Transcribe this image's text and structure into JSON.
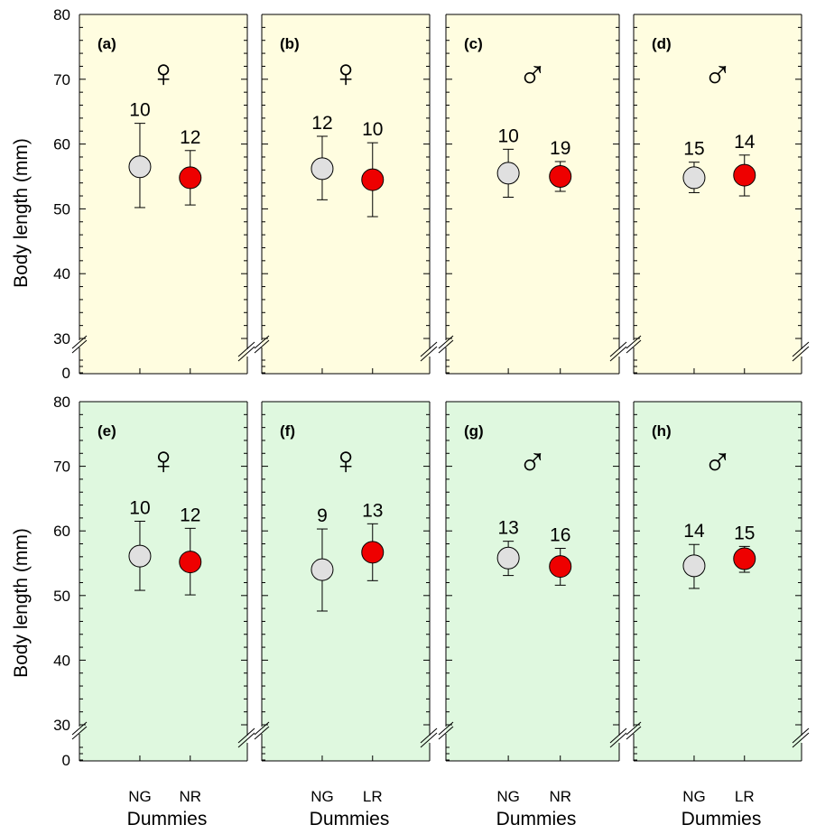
{
  "chart_data": {
    "type": "scatter",
    "ylabel": "Body length (mm)",
    "xlabel": "Dummies",
    "y_ticks": [
      "0",
      "30",
      "40",
      "50",
      "60",
      "70",
      "80"
    ],
    "ylim": [
      30,
      80
    ],
    "axis_break": "between 0 and 30",
    "grid": false,
    "marker_colors": {
      "NG": "#e0e0e0",
      "NR": "#ee0000",
      "LR": "#ee0000"
    },
    "row_backgrounds": [
      "#fffde0",
      "#dff8df"
    ],
    "panels": [
      {
        "label": "(a)",
        "sex_symbol": "♀",
        "categories": [
          "NG",
          "NR"
        ],
        "means": [
          56.5,
          54.8
        ],
        "upper": [
          63.2,
          59.0
        ],
        "lower": [
          50.2,
          50.6
        ],
        "n": [
          "10",
          "12"
        ]
      },
      {
        "label": "(b)",
        "sex_symbol": "♀",
        "categories": [
          "NG",
          "LR"
        ],
        "means": [
          56.2,
          54.5
        ],
        "upper": [
          61.2,
          60.2
        ],
        "lower": [
          51.4,
          48.8
        ],
        "n": [
          "12",
          "10"
        ]
      },
      {
        "label": "(c)",
        "sex_symbol": "♂",
        "categories": [
          "NG",
          "NR"
        ],
        "means": [
          55.5,
          55.0
        ],
        "upper": [
          59.2,
          57.3
        ],
        "lower": [
          51.8,
          52.7
        ],
        "n": [
          "10",
          "19"
        ]
      },
      {
        "label": "(d)",
        "sex_symbol": "♂",
        "categories": [
          "NG",
          "LR"
        ],
        "means": [
          54.8,
          55.2
        ],
        "upper": [
          57.2,
          58.3
        ],
        "lower": [
          52.5,
          52.0
        ],
        "n": [
          "15",
          "14"
        ]
      },
      {
        "label": "(e)",
        "sex_symbol": "♀",
        "categories": [
          "NG",
          "NR"
        ],
        "means": [
          56.1,
          55.2
        ],
        "upper": [
          61.5,
          60.4
        ],
        "lower": [
          50.8,
          50.1
        ],
        "n": [
          "10",
          "12"
        ]
      },
      {
        "label": "(f)",
        "sex_symbol": "♀",
        "categories": [
          "NG",
          "LR"
        ],
        "means": [
          54.0,
          56.7
        ],
        "upper": [
          60.3,
          61.1
        ],
        "lower": [
          47.6,
          52.3
        ],
        "n": [
          "9",
          "13"
        ]
      },
      {
        "label": "(g)",
        "sex_symbol": "♂",
        "categories": [
          "NG",
          "NR"
        ],
        "means": [
          55.8,
          54.5
        ],
        "upper": [
          58.4,
          57.3
        ],
        "lower": [
          53.1,
          51.6
        ],
        "n": [
          "13",
          "16"
        ]
      },
      {
        "label": "(h)",
        "sex_symbol": "♂",
        "categories": [
          "NG",
          "LR"
        ],
        "means": [
          54.6,
          55.7
        ],
        "upper": [
          57.9,
          57.6
        ],
        "lower": [
          51.1,
          53.6
        ],
        "n": [
          "14",
          "15"
        ]
      }
    ]
  }
}
